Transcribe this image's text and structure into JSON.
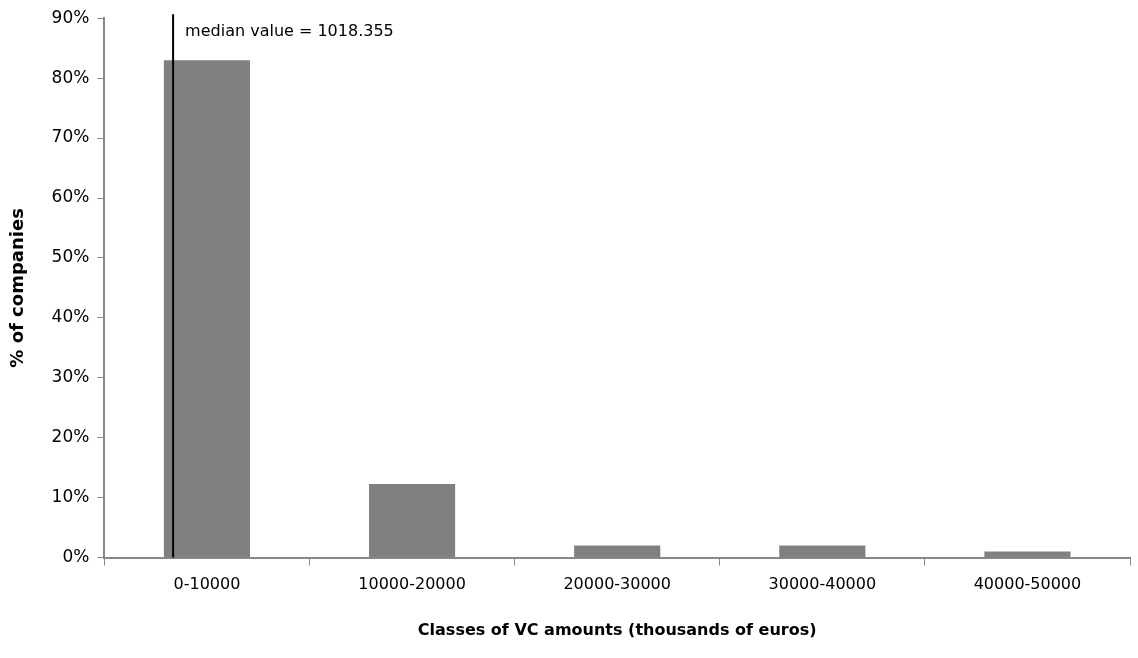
{
  "chart_data": {
    "type": "bar",
    "xlabel": "Classes of VC amounts (thousands of euros)",
    "ylabel": "% of companies",
    "categories": [
      "0-10000",
      "10000-20000",
      "20000-30000",
      "30000-40000",
      "40000-50000"
    ],
    "values": [
      83,
      12.3,
      2,
      2,
      1
    ],
    "color": "#808080",
    "ylim": [
      0,
      90
    ],
    "yticks": [
      {
        "value": 0,
        "label": "0%"
      },
      {
        "value": 10,
        "label": "10%"
      },
      {
        "value": 20,
        "label": "20%"
      },
      {
        "value": 30,
        "label": "30%"
      },
      {
        "value": 40,
        "label": "40%"
      },
      {
        "value": 50,
        "label": "50%"
      },
      {
        "value": 60,
        "label": "60%"
      },
      {
        "value": 70,
        "label": "70%"
      },
      {
        "value": 80,
        "label": "80%"
      },
      {
        "value": 90,
        "label": "90%"
      }
    ],
    "ref_lines": [
      {
        "axis": "x",
        "value": "0-10000",
        "label": "median value = 1018.355",
        "color": "#000000"
      }
    ],
    "grid": false,
    "legend": false
  }
}
